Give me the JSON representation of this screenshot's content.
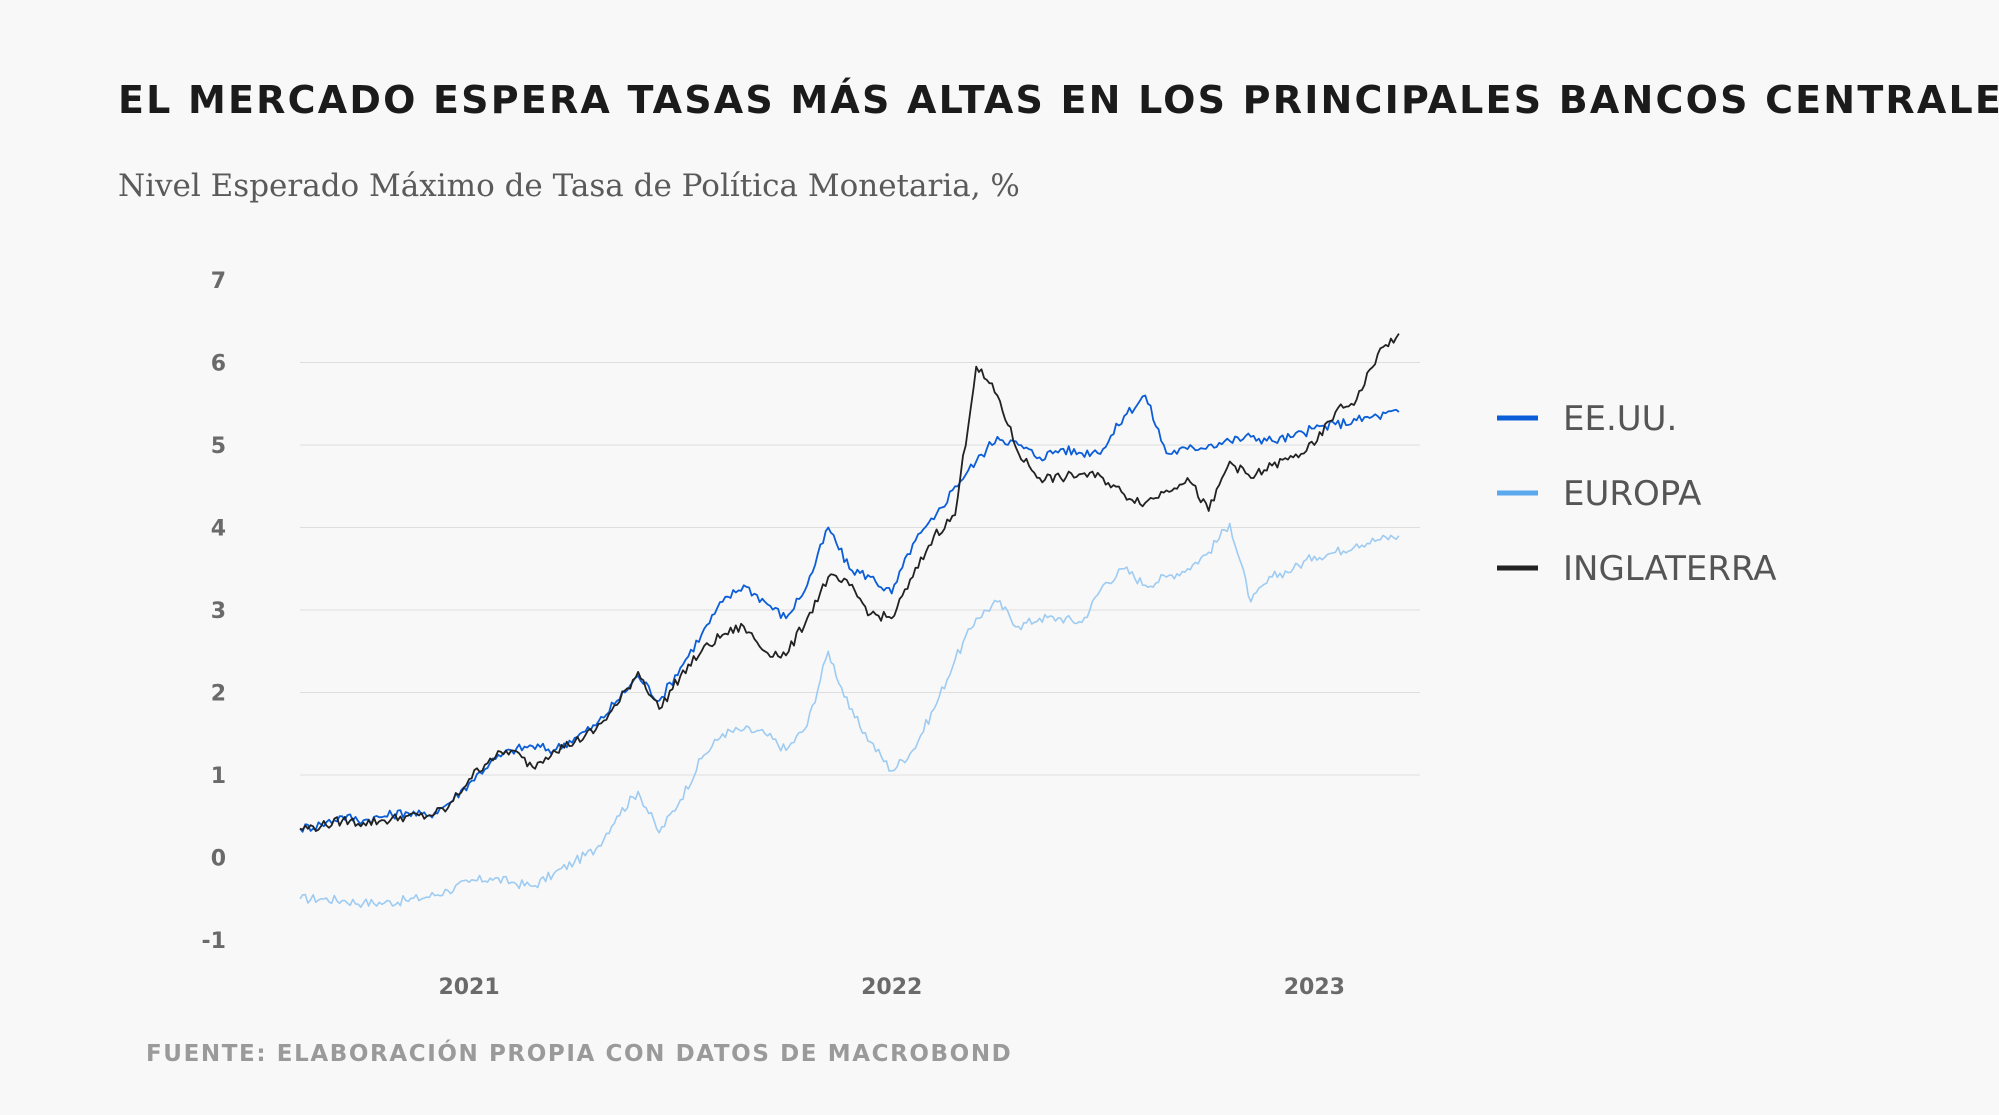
{
  "title": "EL MERCADO ESPERA TASAS MÁS ALTAS EN LOS PRINCIPALES BANCOS CENTRALES",
  "subtitle": "Nivel Esperado Máximo de Tasa de Política Monetaria, %",
  "source": "FUENTE: ELABORACIÓN PROPIA CON DATOS DE MACROBOND",
  "colors": {
    "background": "#f8f8f8",
    "us": "#0b5ed7",
    "europe": "#9ecbf2",
    "uk": "#222222",
    "legend_europe": "#5aa9ee",
    "grid": "#dedede"
  },
  "chart_data": {
    "type": "line",
    "title": "EL MERCADO ESPERA TASAS MÁS ALTAS EN LOS PRINCIPALES BANCOS CENTRALES",
    "ylabel": "Nivel Esperado Máximo de Tasa de Política Monetaria, %",
    "xlabel": "",
    "ylim": [
      -1,
      7
    ],
    "xlim": [
      2020.6,
      2023.25
    ],
    "y_ticks": [
      "7",
      "6",
      "5",
      "4",
      "3",
      "2",
      "1",
      "0",
      "-1"
    ],
    "y_tick_values": [
      7,
      6,
      5,
      4,
      3,
      2,
      1,
      0,
      -1
    ],
    "x_ticks": [
      "2021",
      "2022",
      "2023"
    ],
    "x_tick_values": [
      2021.0,
      2022.0,
      2023.0
    ],
    "grid": true,
    "legend_position": "right",
    "series": [
      {
        "name": "EE.UU.",
        "key": "us",
        "x": [
          2020.6,
          2020.65,
          2020.7,
          2020.75,
          2020.8,
          2020.85,
          2020.9,
          2020.95,
          2021.0,
          2021.05,
          2021.1,
          2021.15,
          2021.2,
          2021.25,
          2021.3,
          2021.35,
          2021.4,
          2021.45,
          2021.5,
          2021.55,
          2021.6,
          2021.65,
          2021.7,
          2021.75,
          2021.8,
          2021.85,
          2021.9,
          2021.95,
          2022.0,
          2022.05,
          2022.1,
          2022.15,
          2022.2,
          2022.25,
          2022.3,
          2022.35,
          2022.4,
          2022.45,
          2022.5,
          2022.55,
          2022.6,
          2022.65,
          2022.7,
          2022.75,
          2022.8,
          2022.85,
          2022.9,
          2022.95,
          2023.0,
          2023.05,
          2023.1,
          2023.15,
          2023.2
        ],
        "values": [
          0.35,
          0.4,
          0.5,
          0.45,
          0.5,
          0.55,
          0.5,
          0.65,
          0.9,
          1.15,
          1.3,
          1.35,
          1.3,
          1.45,
          1.6,
          1.9,
          2.2,
          1.9,
          2.3,
          2.7,
          3.1,
          3.3,
          3.1,
          2.9,
          3.3,
          4.0,
          3.5,
          3.4,
          3.2,
          3.8,
          4.1,
          4.5,
          4.8,
          5.1,
          5.0,
          4.85,
          4.95,
          4.9,
          4.95,
          5.35,
          5.6,
          4.9,
          4.95,
          5.0,
          5.05,
          5.1,
          5.05,
          5.1,
          5.2,
          5.25,
          5.3,
          5.35,
          5.4
        ]
      },
      {
        "name": "EUROPA",
        "key": "europe",
        "x": [
          2020.6,
          2020.65,
          2020.7,
          2020.75,
          2020.8,
          2020.85,
          2020.9,
          2020.95,
          2021.0,
          2021.05,
          2021.1,
          2021.15,
          2021.2,
          2021.25,
          2021.3,
          2021.35,
          2021.4,
          2021.45,
          2021.5,
          2021.55,
          2021.6,
          2021.65,
          2021.7,
          2021.75,
          2021.8,
          2021.85,
          2021.9,
          2021.95,
          2022.0,
          2022.05,
          2022.1,
          2022.15,
          2022.2,
          2022.25,
          2022.3,
          2022.35,
          2022.4,
          2022.45,
          2022.5,
          2022.55,
          2022.6,
          2022.65,
          2022.7,
          2022.75,
          2022.8,
          2022.85,
          2022.9,
          2022.95,
          2023.0,
          2023.05,
          2023.1,
          2023.15,
          2023.2
        ],
        "values": [
          -0.5,
          -0.5,
          -0.52,
          -0.55,
          -0.55,
          -0.52,
          -0.48,
          -0.4,
          -0.3,
          -0.25,
          -0.3,
          -0.35,
          -0.2,
          -0.05,
          0.1,
          0.5,
          0.8,
          0.3,
          0.7,
          1.2,
          1.5,
          1.55,
          1.5,
          1.3,
          1.6,
          2.5,
          1.8,
          1.4,
          1.05,
          1.3,
          1.8,
          2.4,
          2.9,
          3.1,
          2.8,
          2.9,
          2.9,
          2.85,
          3.3,
          3.5,
          3.3,
          3.4,
          3.5,
          3.7,
          4.05,
          3.1,
          3.4,
          3.5,
          3.65,
          3.7,
          3.8,
          3.85,
          3.9
        ]
      },
      {
        "name": "INGLATERRA",
        "key": "uk",
        "x": [
          2020.6,
          2020.65,
          2020.7,
          2020.75,
          2020.8,
          2020.85,
          2020.9,
          2020.95,
          2021.0,
          2021.05,
          2021.1,
          2021.15,
          2021.2,
          2021.25,
          2021.3,
          2021.35,
          2021.4,
          2021.45,
          2021.5,
          2021.55,
          2021.6,
          2021.65,
          2021.7,
          2021.75,
          2021.8,
          2021.85,
          2021.9,
          2021.95,
          2022.0,
          2022.05,
          2022.1,
          2022.15,
          2022.2,
          2022.25,
          2022.3,
          2022.35,
          2022.4,
          2022.45,
          2022.5,
          2022.55,
          2022.6,
          2022.65,
          2022.7,
          2022.75,
          2022.8,
          2022.85,
          2022.9,
          2022.95,
          2023.0,
          2023.05,
          2023.1,
          2023.15,
          2023.2
        ],
        "values": [
          0.35,
          0.38,
          0.45,
          0.42,
          0.45,
          0.5,
          0.5,
          0.6,
          0.95,
          1.2,
          1.3,
          1.1,
          1.3,
          1.4,
          1.55,
          1.85,
          2.25,
          1.8,
          2.2,
          2.5,
          2.7,
          2.8,
          2.5,
          2.45,
          2.9,
          3.4,
          3.3,
          2.95,
          2.9,
          3.4,
          3.9,
          4.15,
          5.95,
          5.6,
          4.9,
          4.6,
          4.6,
          4.65,
          4.6,
          4.4,
          4.3,
          4.45,
          4.6,
          4.2,
          4.8,
          4.6,
          4.75,
          4.85,
          5.0,
          5.4,
          5.55,
          6.1,
          6.35
        ]
      }
    ]
  },
  "legend": [
    {
      "label": "EE.UU.",
      "color": "#0b5ed7"
    },
    {
      "label": "EUROPA",
      "color": "#5aa9ee"
    },
    {
      "label": "INGLATERRA",
      "color": "#222222"
    }
  ]
}
